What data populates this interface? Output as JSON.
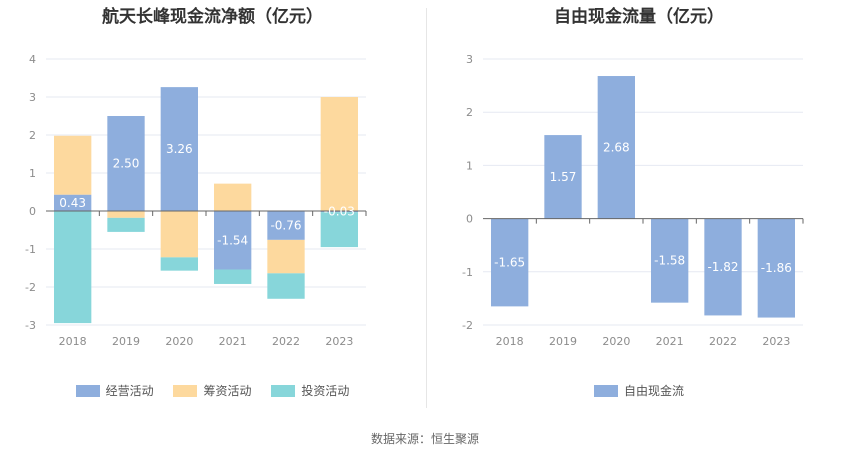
{
  "source_text": "数据来源：恒生聚源",
  "colors": {
    "operating": "#8eaedd",
    "financing": "#fdd99e",
    "investing": "#87d6da",
    "free_cash": "#8eaedd",
    "grid": "#e6e9f2",
    "axis": "#666666"
  },
  "chart_data": [
    {
      "type": "bar",
      "stacked": true,
      "title": "航天长峰现金流净额（亿元）",
      "categories": [
        "2018",
        "2019",
        "2020",
        "2021",
        "2022",
        "2023"
      ],
      "ylim": [
        -3,
        4
      ],
      "yticks": [
        -3,
        -2,
        -1,
        0,
        1,
        2,
        3,
        4
      ],
      "series": [
        {
          "name": "经营活动",
          "values": [
            0.43,
            2.5,
            3.26,
            -1.54,
            -0.76,
            -0.03
          ],
          "labels": [
            "0.43",
            "2.50",
            "3.26",
            "-1.54",
            "-0.76",
            "-0.03"
          ]
        },
        {
          "name": "筹资活动",
          "values": [
            1.55,
            -0.18,
            -1.22,
            0.72,
            -0.88,
            3.0
          ]
        },
        {
          "name": "投资活动",
          "values": [
            -2.95,
            -0.37,
            -0.35,
            -0.38,
            -0.67,
            -0.92
          ]
        }
      ],
      "legend": [
        "经营活动",
        "筹资活动",
        "投资活动"
      ]
    },
    {
      "type": "bar",
      "title": "自由现金流量（亿元）",
      "categories": [
        "2018",
        "2019",
        "2020",
        "2021",
        "2022",
        "2023"
      ],
      "ylim": [
        -2,
        3
      ],
      "yticks": [
        -2,
        -1,
        0,
        1,
        2,
        3
      ],
      "series": [
        {
          "name": "自由现金流",
          "values": [
            -1.65,
            1.57,
            2.68,
            -1.58,
            -1.82,
            -1.86
          ],
          "labels": [
            "-1.65",
            "1.57",
            "2.68",
            "-1.58",
            "-1.82",
            "-1.86"
          ]
        }
      ],
      "legend": [
        "自由现金流"
      ]
    }
  ]
}
